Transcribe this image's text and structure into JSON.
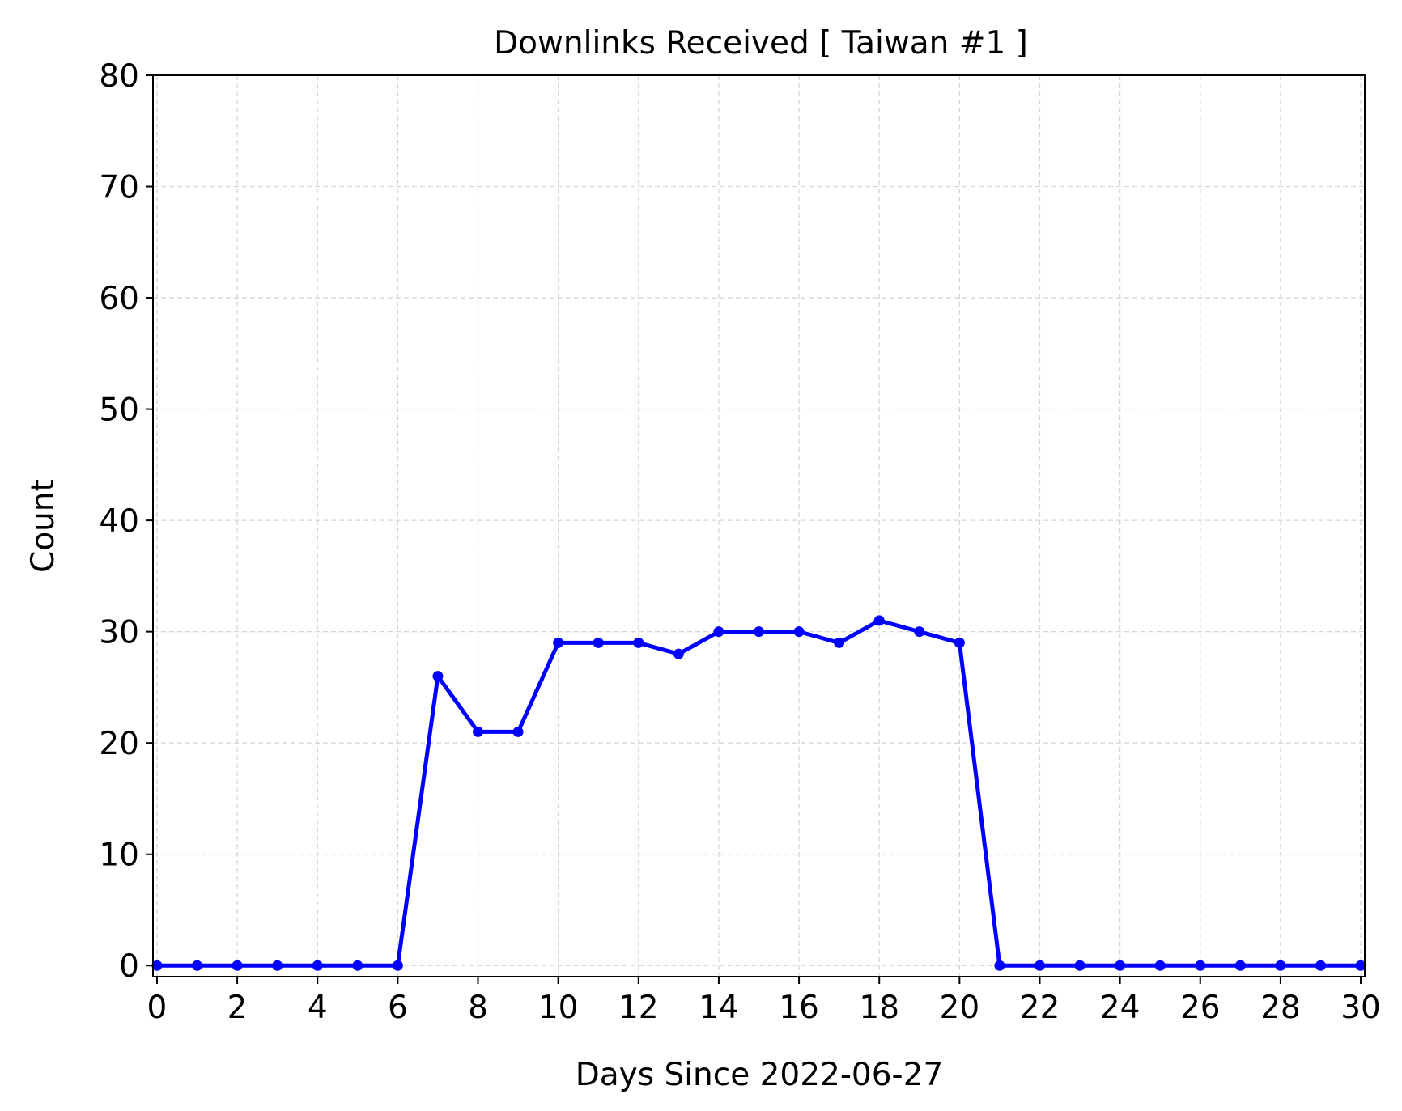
{
  "chart_data": {
    "type": "line",
    "title": "Downlinks Received [ Taiwan #1 ]",
    "xlabel": "Days Since 2022-06-27",
    "ylabel": "Count",
    "xlim": [
      -0.1,
      30.1
    ],
    "ylim": [
      -1,
      80
    ],
    "xticks": [
      0,
      2,
      4,
      6,
      8,
      10,
      12,
      14,
      16,
      18,
      20,
      22,
      24,
      26,
      28,
      30
    ],
    "yticks": [
      0,
      10,
      20,
      30,
      40,
      50,
      60,
      70,
      80
    ],
    "grid": true,
    "series": [
      {
        "color": "#0000ff",
        "marker": "dot",
        "x": [
          0,
          1,
          2,
          3,
          4,
          5,
          6,
          7,
          8,
          9,
          10,
          11,
          12,
          13,
          14,
          15,
          16,
          17,
          18,
          19,
          20,
          21,
          22,
          23,
          24,
          25,
          26,
          27,
          28,
          29,
          30
        ],
        "y": [
          0,
          0,
          0,
          0,
          0,
          0,
          0,
          26,
          21,
          21,
          29,
          29,
          29,
          28,
          30,
          30,
          30,
          29,
          31,
          30,
          29,
          0,
          0,
          0,
          0,
          0,
          0,
          0,
          0,
          0,
          0
        ]
      }
    ]
  }
}
